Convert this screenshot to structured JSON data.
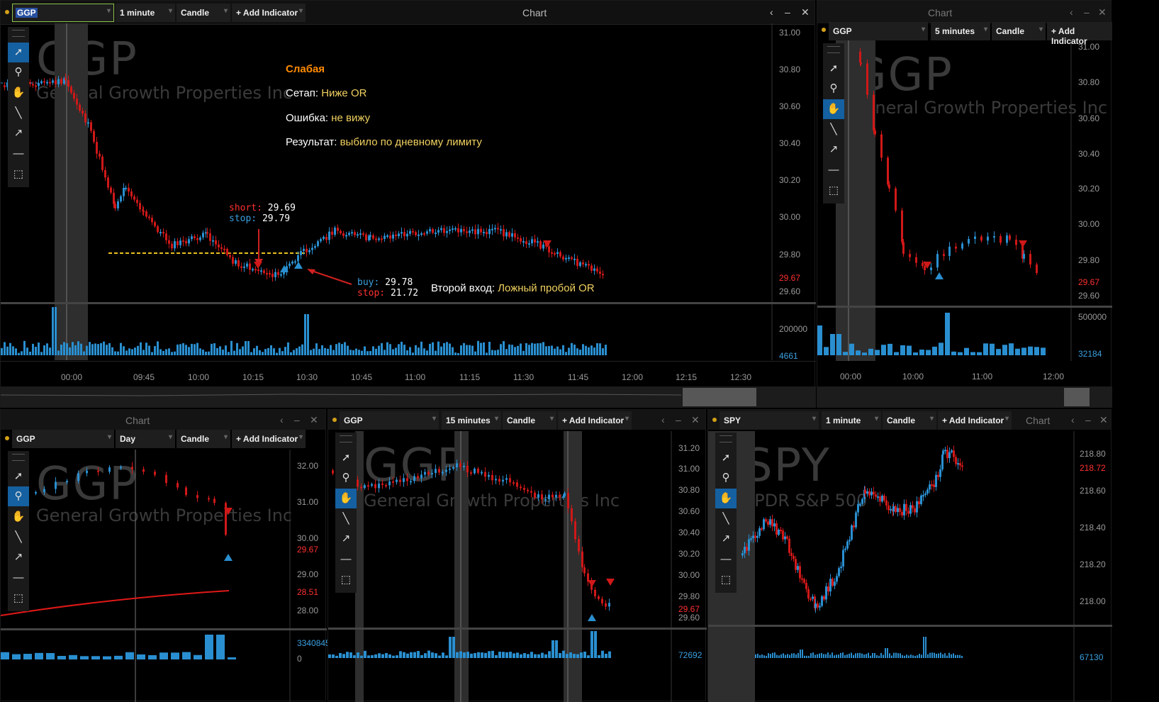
{
  "main": {
    "symbol": "GGP",
    "interval": "1 minute",
    "chart_type": "Candle",
    "add_indicator": "+ Add Indicator",
    "title": "Chart",
    "window_buttons": [
      "‹",
      "‒",
      "✕"
    ],
    "watermark_symbol": "GGP",
    "watermark_name": "General Growth Properties Inc",
    "annotation": {
      "title": "Слабая",
      "setup_label": "Сетап:",
      "setup_value": "Ниже OR",
      "error_label": "Ошибка:",
      "error_value": "не вижу",
      "result_label": "Результат:",
      "result_value": "выбило по дневному лимиту",
      "second_label": "Второй вход:",
      "second_value": "Ложный пробой OR"
    },
    "short_trade": {
      "short_label": "short:",
      "short_value": "29.69",
      "stop_label": "stop:",
      "stop_value": "29.79"
    },
    "buy_trade": {
      "buy_label": "buy:",
      "buy_value": "29.78",
      "stop_label": "stop:",
      "stop_value": "21.72"
    },
    "price_axis": [
      "31.00",
      "30.80",
      "30.60",
      "30.40",
      "30.20",
      "30.00",
      "29.80",
      "29.67",
      "29.60"
    ],
    "last_price": "29.67",
    "volume_axis": [
      "200000",
      "4661"
    ],
    "time_axis": [
      "00:00",
      "09:45",
      "10:00",
      "10:15",
      "10:30",
      "10:45",
      "11:00",
      "11:15",
      "11:30",
      "11:45",
      "12:00",
      "12:15",
      "12:30"
    ]
  },
  "top_right": {
    "title": "Chart",
    "symbol": "GGP",
    "interval": "5 minutes",
    "chart_type": "Candle",
    "add_indicator": "+ Add Indicator",
    "window_buttons": [
      "‹",
      "‒",
      "✕"
    ],
    "watermark_symbol": "GGP",
    "watermark_name": "General Growth Properties Inc",
    "price_axis": [
      "31.00",
      "30.80",
      "30.60",
      "30.40",
      "30.20",
      "30.00",
      "29.80",
      "29.67",
      "29.60"
    ],
    "volume_axis": [
      "500000",
      "32184"
    ],
    "time_axis": [
      "00:00",
      "10:00",
      "11:00",
      "12:00"
    ]
  },
  "bottom_left": {
    "title": "Chart",
    "symbol": "GGP",
    "interval": "Day",
    "chart_type": "Candle",
    "add_indicator": "+ Add Indicator",
    "window_buttons": [
      "‹",
      "‒",
      "✕"
    ],
    "watermark_symbol": "GGP",
    "watermark_name": "General Growth Properties Inc",
    "price_axis": [
      "32.00",
      "31.00",
      "30.00",
      "29.67",
      "29.00",
      "28.51",
      "28.00"
    ],
    "volume_axis": [
      "3340845",
      "0"
    ]
  },
  "bottom_mid": {
    "symbol": "GGP",
    "interval": "15 minutes",
    "chart_type": "Candle",
    "add_indicator": "+ Add Indicator",
    "window_buttons": [
      "‹",
      "‒",
      "✕"
    ],
    "watermark_symbol": "GGP",
    "watermark_name": "General Growth Properties Inc",
    "price_axis": [
      "31.20",
      "31.00",
      "30.80",
      "30.60",
      "30.40",
      "30.20",
      "30.00",
      "29.80",
      "29.67",
      "29.60"
    ],
    "volume_axis": [
      "72692"
    ]
  },
  "bottom_right": {
    "title": "Chart",
    "symbol": "SPY",
    "interval": "1 minute",
    "chart_type": "Candle",
    "add_indicator": "+ Add Indicator",
    "window_buttons": [
      "‹",
      "‒",
      "✕"
    ],
    "watermark_symbol": "SPY",
    "watermark_name": "SPDR S&P 500",
    "price_axis": [
      "218.80",
      "218.72",
      "218.60",
      "218.40",
      "218.20",
      "218.00"
    ],
    "volume_axis": [
      "67130"
    ]
  },
  "colors": {
    "up": "#2a8fd0",
    "down": "#d01818",
    "accent_orange": "#ff8a00",
    "value_yellow": "#f0d060"
  }
}
